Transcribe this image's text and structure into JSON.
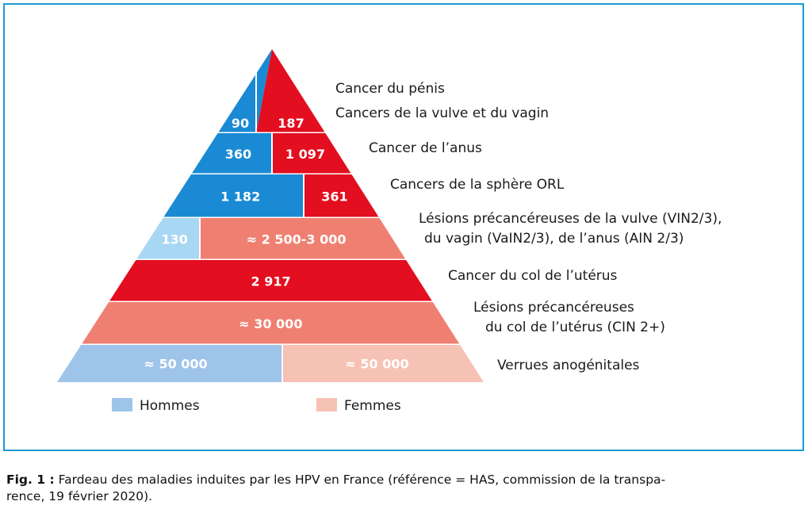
{
  "chart_data": {
    "type": "bar",
    "layout": "pyramid",
    "series": [
      {
        "name": "Hommes",
        "color": "#9fc4ea"
      },
      {
        "name": "Femmes",
        "color": "#f6c2b5"
      }
    ],
    "rows": [
      {
        "label": [
          "Cancer du pénis",
          "Cancers de la vulve et du vagin"
        ],
        "hommes": 90,
        "femmes": 187,
        "hommes_label": "90",
        "femmes_label": "187",
        "hommes_color": "#1a8ad4",
        "femmes_color": "#e30e1f"
      },
      {
        "label": [
          "Cancer de l’anus"
        ],
        "hommes": 360,
        "femmes": 1097,
        "hommes_label": "360",
        "femmes_label": "1 097",
        "hommes_color": "#1a8ad4",
        "femmes_color": "#e30e1f"
      },
      {
        "label": [
          "Cancers de la sphère ORL"
        ],
        "hommes": 1182,
        "femmes": 361,
        "hommes_label": "1 182",
        "femmes_label": "361",
        "hommes_color": "#1a8ad4",
        "femmes_color": "#e30e1f"
      },
      {
        "label": [
          "Lésions précancéreuses de la vulve (VIN2/3),",
          "du vagin (VaIN2/3), de l’anus (AIN 2/3)"
        ],
        "hommes": 130,
        "femmes": "2500-3000",
        "hommes_label": "130",
        "femmes_label": "≈ 2 500-3 000",
        "hommes_color": "#a8d7f3",
        "femmes_color": "#ef8071"
      },
      {
        "label": [
          "Cancer du col de l’utérus"
        ],
        "hommes": null,
        "femmes": 2917,
        "hommes_label": "",
        "femmes_label": "2 917",
        "hommes_color": "",
        "femmes_color": "#e30e1f"
      },
      {
        "label": [
          "Lésions précancéreuses",
          "du col de l’utérus (CIN 2+)"
        ],
        "hommes": null,
        "femmes": 30000,
        "hommes_label": "",
        "femmes_label": "≈ 30 000",
        "hommes_color": "",
        "femmes_color": "#ef8071"
      },
      {
        "label": [
          "Verrues anogénitales"
        ],
        "hommes": 50000,
        "femmes": 50000,
        "hommes_label": "≈ 50 000",
        "femmes_label": "≈ 50 000",
        "hommes_color": "#9fc4ea",
        "femmes_color": "#f6c2b5"
      }
    ],
    "legend": [
      {
        "label": "Hommes",
        "color": "#9fc4ea"
      },
      {
        "label": "Femmes",
        "color": "#f6c2b5"
      }
    ],
    "legend_position": "bottom"
  },
  "caption": {
    "figref": "Fig. 1 :",
    "text": " Fardeau des maladies induites par les HPV en France (référence = HAS, commission de la transpa-",
    "text2": "rence, 19 février 2020)."
  },
  "colors": {
    "frame": "#1b9ad6",
    "separator": "#ffffff"
  }
}
